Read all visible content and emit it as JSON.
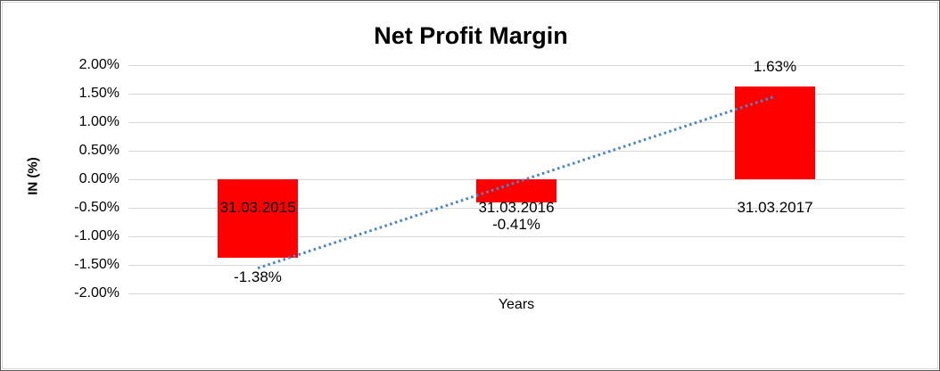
{
  "window": {
    "background": "#ffffff",
    "outer_border_color": "#595959",
    "chart_border_color": "#d9d9d9"
  },
  "chart_data": {
    "type": "bar",
    "title": "Net Profit Margin",
    "xlabel": "Years",
    "ylabel": "IN (%)",
    "categories": [
      "31.03.2015",
      "31.03.2016",
      "31.03.2017"
    ],
    "values": [
      -1.38,
      -0.41,
      1.63
    ],
    "data_labels": [
      "-1.38%",
      "-0.41%",
      "1.63%"
    ],
    "ylim": [
      -2,
      2
    ],
    "ytick_step": 0.5,
    "ytick_labels": [
      "2.00%",
      "1.50%",
      "1.00%",
      "0.50%",
      "0.00%",
      "-0.50%",
      "-1.00%",
      "-1.50%",
      "-2.00%"
    ],
    "grid": "horizontal-only",
    "gridline_color": "#d9d9d9",
    "bar_color": "#ff0000",
    "legend": "none",
    "trendline": {
      "kind": "linear-least-squares",
      "style": "dotted",
      "color": "#4a86c8"
    }
  }
}
